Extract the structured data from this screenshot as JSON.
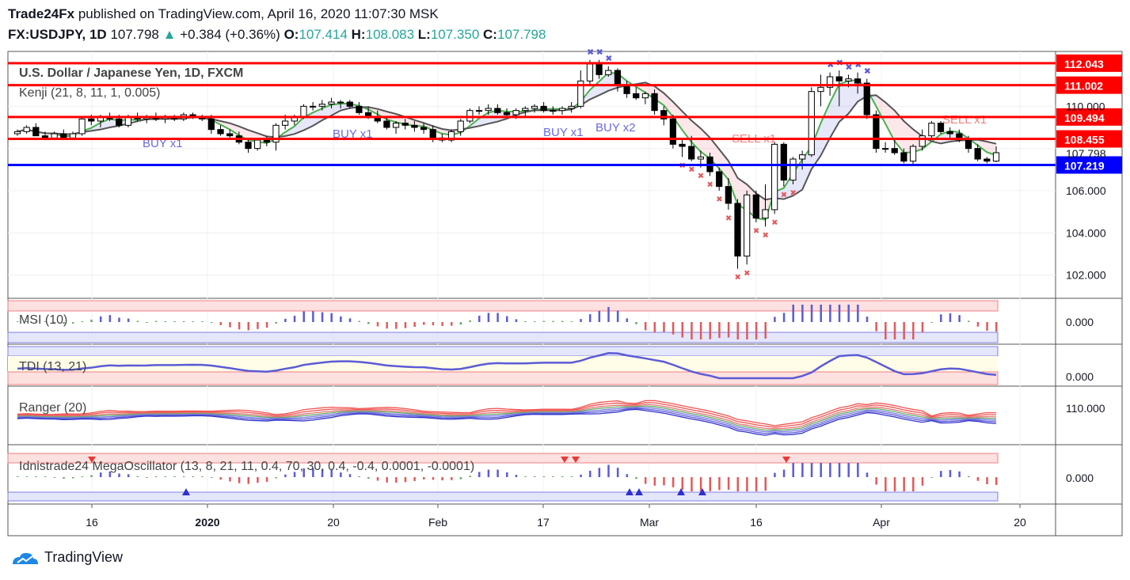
{
  "header": {
    "publisher": "Trade24Fx",
    "published_text": "published on TradingView.com, April 16, 2020 11:07:30 MSK",
    "symbol": "FX:USDJPY, 1D",
    "last": "107.798",
    "change": "+0.384 (+0.36%)",
    "open_label": "O:",
    "open": "107.414",
    "high_label": "H:",
    "high": "108.083",
    "low_label": "L:",
    "low": "107.350",
    "close_label": "C:",
    "close": "107.798"
  },
  "footer": {
    "brand": "TradingView"
  },
  "colors": {
    "red_line": "#ff0000",
    "blue_line": "#0000ff",
    "up_candle": "#ffffff",
    "down_candle": "#000000",
    "green_up": "#26a69a"
  },
  "chart_data": {
    "type": "candlestick",
    "title": "U.S. Dollar / Japanese Yen, 1D, FXCM",
    "indicator": "Kenji (21, 8, 11, 1, 0.005)",
    "price_axis_ticks": [
      "110.000",
      "104.000",
      "102.000"
    ],
    "price_axis_partial": [
      "106.000"
    ],
    "ylim": [
      100.9,
      112.6
    ],
    "levels": [
      {
        "value": 112.043,
        "label": "112.043",
        "color": "#ff0000"
      },
      {
        "value": 111.002,
        "label": "111.002",
        "color": "#ff0000"
      },
      {
        "value": 109.494,
        "label": "109.494",
        "color": "#ff0000"
      },
      {
        "value": 108.455,
        "label": "108.455",
        "color": "#ff0000"
      },
      {
        "value": 107.219,
        "label": "107.219",
        "color": "#0000ff"
      }
    ],
    "last_price": {
      "value": 107.798,
      "label": "107.798"
    },
    "x_tick_labels": [
      "16",
      "2020",
      "20",
      "Feb",
      "17",
      "Mar",
      "16",
      "Apr",
      "20"
    ],
    "candles": [
      [
        108.7,
        108.9,
        108.6,
        108.8
      ],
      [
        108.8,
        109.1,
        108.7,
        109.0
      ],
      [
        109.0,
        109.2,
        108.6,
        108.6
      ],
      [
        108.6,
        108.8,
        108.4,
        108.5
      ],
      [
        108.5,
        108.8,
        108.4,
        108.7
      ],
      [
        108.7,
        108.9,
        108.5,
        108.5
      ],
      [
        108.5,
        108.8,
        108.4,
        108.7
      ],
      [
        108.7,
        109.5,
        108.6,
        109.4
      ],
      [
        109.4,
        109.6,
        109.1,
        109.3
      ],
      [
        109.3,
        109.6,
        109.0,
        109.5
      ],
      [
        109.5,
        109.7,
        109.3,
        109.4
      ],
      [
        109.4,
        109.6,
        109.0,
        109.1
      ],
      [
        109.1,
        109.6,
        109.0,
        109.5
      ],
      [
        109.5,
        109.7,
        109.3,
        109.4
      ],
      [
        109.4,
        109.6,
        109.2,
        109.5
      ],
      [
        109.5,
        109.7,
        109.3,
        109.4
      ],
      [
        109.4,
        109.6,
        109.2,
        109.5
      ],
      [
        109.5,
        109.6,
        109.3,
        109.4
      ],
      [
        109.4,
        109.7,
        109.3,
        109.6
      ],
      [
        109.6,
        109.7,
        109.4,
        109.5
      ],
      [
        109.5,
        109.6,
        109.3,
        109.4
      ],
      [
        109.4,
        109.6,
        108.7,
        108.9
      ],
      [
        108.9,
        109.1,
        108.6,
        108.7
      ],
      [
        108.7,
        108.9,
        108.5,
        108.6
      ],
      [
        108.6,
        108.8,
        108.2,
        108.3
      ],
      [
        108.3,
        108.5,
        107.8,
        108.0
      ],
      [
        108.0,
        108.5,
        107.9,
        108.4
      ],
      [
        108.4,
        108.6,
        108.1,
        108.3
      ],
      [
        108.3,
        109.2,
        107.9,
        109.1
      ],
      [
        109.1,
        109.6,
        108.9,
        109.3
      ],
      [
        109.3,
        109.6,
        109.1,
        109.5
      ],
      [
        109.5,
        110.1,
        109.4,
        110.0
      ],
      [
        110.0,
        110.2,
        109.8,
        110.0
      ],
      [
        110.0,
        110.3,
        109.8,
        110.1
      ],
      [
        110.1,
        110.4,
        109.9,
        110.2
      ],
      [
        110.2,
        110.3,
        109.9,
        110.2
      ],
      [
        110.2,
        110.3,
        109.9,
        110.0
      ],
      [
        110.0,
        110.2,
        109.6,
        109.7
      ],
      [
        109.7,
        110.0,
        109.4,
        109.5
      ],
      [
        109.5,
        109.8,
        109.2,
        109.3
      ],
      [
        109.3,
        109.5,
        108.9,
        109.0
      ],
      [
        109.0,
        109.3,
        108.7,
        109.2
      ],
      [
        109.2,
        109.4,
        108.9,
        109.1
      ],
      [
        109.1,
        109.3,
        108.8,
        109.0
      ],
      [
        109.0,
        109.2,
        108.7,
        108.9
      ],
      [
        108.9,
        109.1,
        108.3,
        108.5
      ],
      [
        108.5,
        108.7,
        108.3,
        108.4
      ],
      [
        108.4,
        108.9,
        108.3,
        108.8
      ],
      [
        108.8,
        109.4,
        108.6,
        109.3
      ],
      [
        109.3,
        109.9,
        109.2,
        109.8
      ],
      [
        109.8,
        110.0,
        109.6,
        109.8
      ],
      [
        109.8,
        110.1,
        109.6,
        109.9
      ],
      [
        109.9,
        110.1,
        109.6,
        109.7
      ],
      [
        109.7,
        109.9,
        109.5,
        109.6
      ],
      [
        109.6,
        109.9,
        109.4,
        109.8
      ],
      [
        109.8,
        110.0,
        109.5,
        109.9
      ],
      [
        109.9,
        110.1,
        109.7,
        110.0
      ],
      [
        110.0,
        110.2,
        109.7,
        109.8
      ],
      [
        109.8,
        110.0,
        109.6,
        109.8
      ],
      [
        109.8,
        110.0,
        109.6,
        109.9
      ],
      [
        109.9,
        110.2,
        109.7,
        110.0
      ],
      [
        110.0,
        111.7,
        109.9,
        111.2
      ],
      [
        111.2,
        112.2,
        111.0,
        112.0
      ],
      [
        112.0,
        112.2,
        111.3,
        111.5
      ],
      [
        111.5,
        111.9,
        111.4,
        111.7
      ],
      [
        111.7,
        111.8,
        110.7,
        111.0
      ],
      [
        111.0,
        111.2,
        110.4,
        110.6
      ],
      [
        110.6,
        110.9,
        110.3,
        110.4
      ],
      [
        110.4,
        110.7,
        110.1,
        110.6
      ],
      [
        110.6,
        110.8,
        109.6,
        109.8
      ],
      [
        109.8,
        110.0,
        109.1,
        109.4
      ],
      [
        109.4,
        109.6,
        108.0,
        108.2
      ],
      [
        108.2,
        108.4,
        107.6,
        108.1
      ],
      [
        108.1,
        108.6,
        107.4,
        107.5
      ],
      [
        107.5,
        107.9,
        107.1,
        107.6
      ],
      [
        107.6,
        107.8,
        106.7,
        106.9
      ],
      [
        106.9,
        107.1,
        106.0,
        106.2
      ],
      [
        106.2,
        106.6,
        105.1,
        105.4
      ],
      [
        105.4,
        105.6,
        102.3,
        102.9
      ],
      [
        102.9,
        106.0,
        102.5,
        105.8
      ],
      [
        105.8,
        106.0,
        104.5,
        104.7
      ],
      [
        104.7,
        106.3,
        104.3,
        105.1
      ],
      [
        105.1,
        108.3,
        104.9,
        108.2
      ],
      [
        108.2,
        108.3,
        106.2,
        106.5
      ],
      [
        106.5,
        107.6,
        106.3,
        107.5
      ],
      [
        107.5,
        107.9,
        107.0,
        107.7
      ],
      [
        107.7,
        110.9,
        107.6,
        110.7
      ],
      [
        110.7,
        111.5,
        110.0,
        110.9
      ],
      [
        110.9,
        111.6,
        110.5,
        111.4
      ],
      [
        111.4,
        111.7,
        110.0,
        111.2
      ],
      [
        111.2,
        111.5,
        110.9,
        111.3
      ],
      [
        111.3,
        111.6,
        110.6,
        111.1
      ],
      [
        111.1,
        111.3,
        109.4,
        109.6
      ],
      [
        109.6,
        109.8,
        107.8,
        108.0
      ],
      [
        108.0,
        108.3,
        107.8,
        108.0
      ],
      [
        108.0,
        108.4,
        107.7,
        107.8
      ],
      [
        107.8,
        108.0,
        107.3,
        107.4
      ],
      [
        107.4,
        108.2,
        107.2,
        108.1
      ],
      [
        108.1,
        108.9,
        107.9,
        108.6
      ],
      [
        108.6,
        109.3,
        108.5,
        109.2
      ],
      [
        109.2,
        109.3,
        108.7,
        108.8
      ],
      [
        108.8,
        109.0,
        108.5,
        108.7
      ],
      [
        108.7,
        108.9,
        108.3,
        108.4
      ],
      [
        108.4,
        108.6,
        107.8,
        108.0
      ],
      [
        108.0,
        108.2,
        107.4,
        107.5
      ],
      [
        107.5,
        107.6,
        107.3,
        107.4
      ],
      [
        107.4,
        108.1,
        107.35,
        107.8
      ]
    ],
    "signals": [
      {
        "label": "BUY x1",
        "color": "#6b6bdc"
      },
      {
        "label": "BUY x1",
        "color": "#6b6bdc"
      },
      {
        "label": "BUY x1",
        "color": "#6b6bdc"
      },
      {
        "label": "BUY x2",
        "color": "#6b6bdc"
      },
      {
        "label": "SELL x1",
        "color": "#f08080"
      },
      {
        "label": "SELL x1",
        "color": "#f08080"
      }
    ],
    "panes": [
      {
        "name": "MSI (10)",
        "axis_label": "0.000"
      },
      {
        "name": "TDI (13, 21)",
        "axis_label": "0.000"
      },
      {
        "name": "Ranger (20)",
        "axis_label": "110.000"
      },
      {
        "name": "Idnistrade24 MegaOscillator (13, 8, 21, 11, 0.4, 70, 30, 0.4, -0.4, 0.0001, -0.0001)",
        "axis_label": "0.000"
      }
    ]
  }
}
